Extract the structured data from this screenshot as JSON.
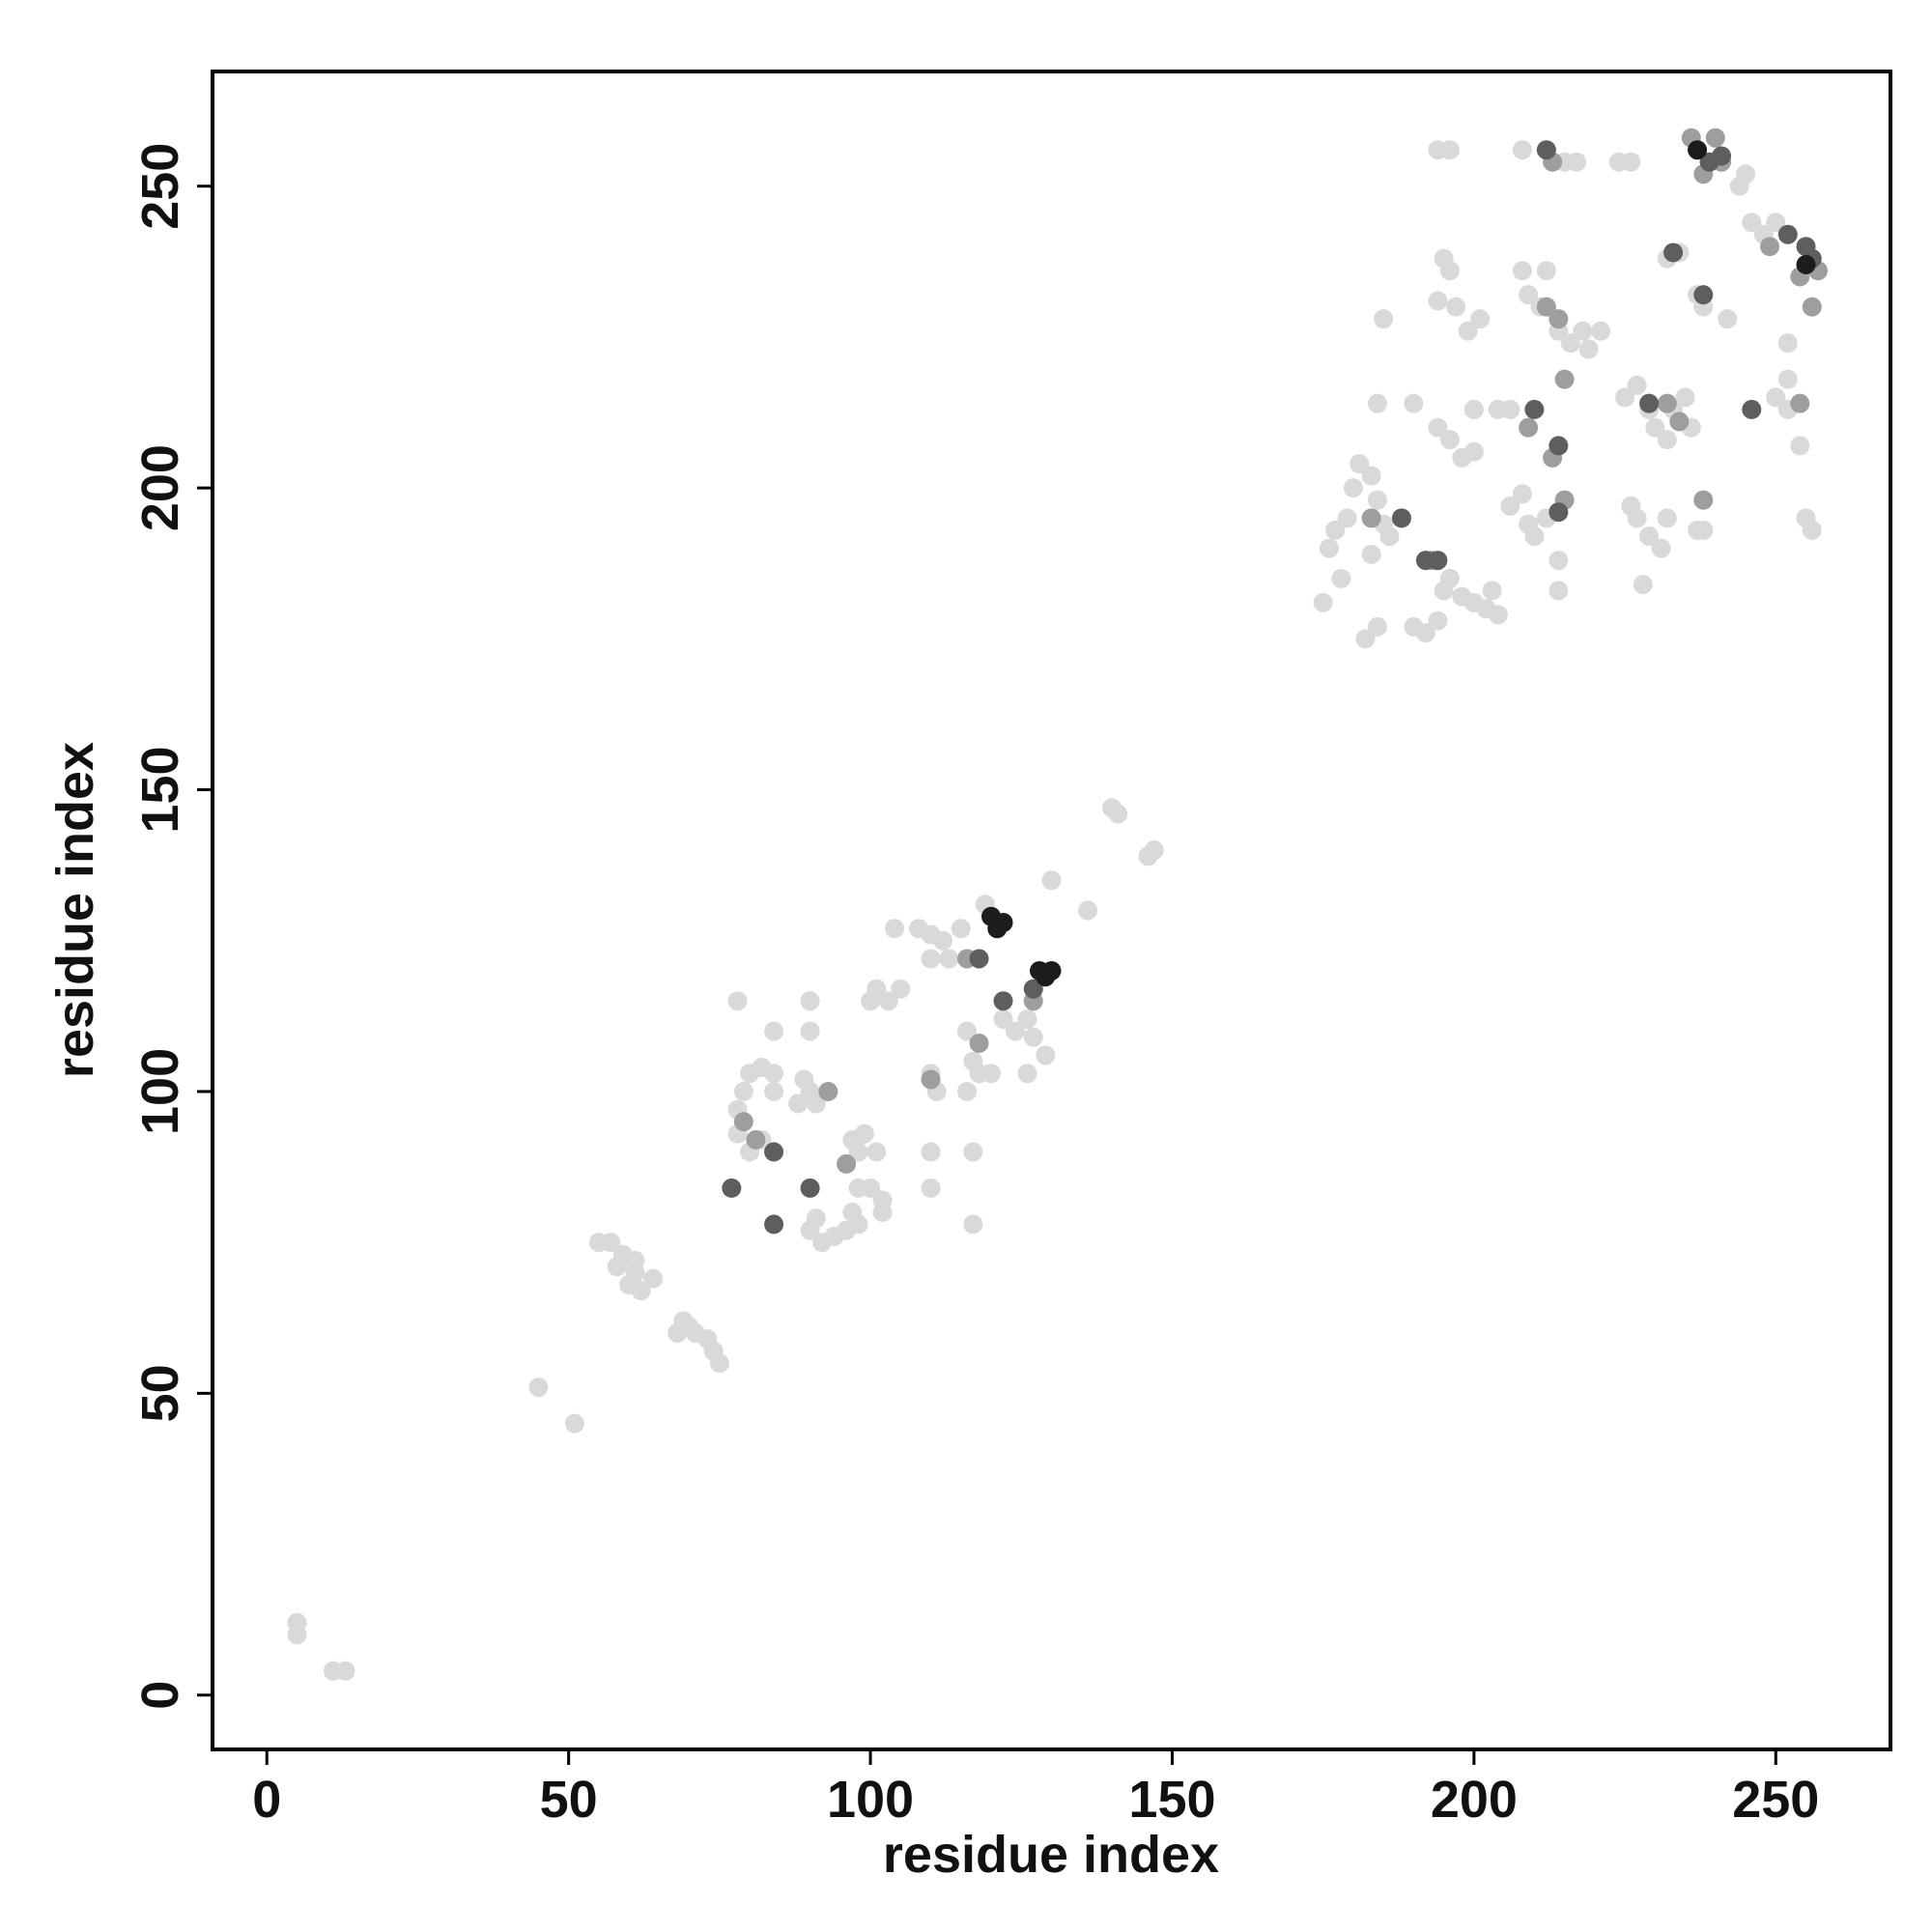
{
  "chart_data": {
    "type": "scatter",
    "x_label": "residue index",
    "y_label": "residue index",
    "xlim": [
      -9,
      269
    ],
    "ylim": [
      -9,
      269
    ],
    "xticks": [
      0,
      50,
      100,
      150,
      200,
      250
    ],
    "yticks": [
      0,
      50,
      100,
      150,
      200,
      250
    ],
    "series": [
      {
        "color": "#d9d9d9",
        "x": [
          5,
          5,
          11,
          13,
          45,
          51,
          55,
          57,
          59,
          61,
          61,
          60,
          62,
          64,
          58,
          69,
          68,
          71,
          73,
          74,
          75,
          70,
          78,
          78,
          79,
          80,
          82,
          84,
          80,
          82,
          84,
          78,
          84,
          88,
          89,
          90,
          91,
          91,
          90,
          92,
          94,
          96,
          98,
          97,
          98,
          100,
          102,
          102,
          98,
          97,
          99,
          101,
          90,
          90,
          100,
          101,
          103,
          105,
          104,
          108,
          110,
          112,
          115,
          113,
          110,
          110,
          111,
          110,
          110,
          116,
          117,
          118,
          116,
          120,
          117,
          117,
          119,
          122,
          124,
          126,
          127,
          126,
          129,
          130,
          136,
          140,
          141,
          147,
          146,
          175,
          176,
          177,
          179,
          178,
          180,
          181,
          183,
          184,
          185,
          186,
          182,
          184,
          183,
          185,
          184,
          190,
          190,
          192,
          194,
          195,
          196,
          198,
          200,
          202,
          204,
          203,
          194,
          196,
          198,
          200,
          200,
          195,
          196,
          197,
          199,
          201,
          194,
          194,
          196,
          204,
          206,
          206,
          208,
          209,
          210,
          212,
          214,
          214,
          214,
          208,
          209,
          211,
          212,
          214,
          216,
          218,
          219,
          221,
          208,
          212,
          215,
          217,
          224,
          226,
          225,
          227,
          229,
          230,
          232,
          233,
          235,
          236,
          226,
          227,
          229,
          231,
          232,
          237,
          238,
          228,
          232,
          234,
          237,
          238,
          242,
          245,
          244,
          246,
          248,
          250,
          250,
          252,
          252,
          252,
          254,
          255,
          256
        ],
        "y": [
          12,
          10,
          4,
          4,
          51,
          45,
          75,
          75,
          73,
          72,
          70,
          68,
          67,
          69,
          71,
          62,
          60,
          60,
          59,
          57,
          55,
          61,
          97,
          93,
          100,
          103,
          104,
          103,
          90,
          92,
          100,
          115,
          110,
          98,
          102,
          100,
          98,
          79,
          77,
          75,
          76,
          77,
          78,
          80,
          84,
          84,
          82,
          80,
          90,
          92,
          93,
          90,
          110,
          115,
          115,
          117,
          115,
          117,
          127,
          127,
          126,
          125,
          127,
          122,
          122,
          103,
          100,
          90,
          84,
          110,
          105,
          103,
          100,
          103,
          90,
          78,
          131,
          112,
          110,
          112,
          109,
          103,
          106,
          135,
          130,
          147,
          146,
          140,
          139,
          181,
          190,
          193,
          195,
          185,
          200,
          204,
          202,
          198,
          194,
          192,
          175,
          177,
          189,
          228,
          214,
          214,
          177,
          176,
          178,
          183,
          185,
          182,
          181,
          180,
          179,
          183,
          210,
          208,
          205,
          206,
          213,
          238,
          236,
          230,
          226,
          228,
          231,
          256,
          256,
          213,
          213,
          197,
          199,
          194,
          192,
          195,
          196,
          188,
          183,
          236,
          232,
          230,
          236,
          226,
          224,
          226,
          223,
          226,
          256,
          256,
          254,
          254,
          254,
          254,
          215,
          217,
          213,
          210,
          208,
          213,
          215,
          210,
          197,
          195,
          192,
          190,
          195,
          193,
          193,
          184,
          238,
          239,
          232,
          230,
          228,
          252,
          250,
          244,
          242,
          244,
          215,
          213,
          218,
          224,
          207,
          195,
          193
        ]
      },
      {
        "color": "#9e9e9e",
        "x": [
          79,
          81,
          93,
          96,
          110,
          116,
          118,
          127,
          183,
          193,
          212,
          214,
          232,
          234,
          238,
          236,
          240,
          238,
          241,
          249,
          254,
          256,
          257,
          254,
          215,
          209,
          213,
          215,
          213
        ],
        "y": [
          95,
          92,
          100,
          88,
          102,
          122,
          108,
          115,
          195,
          188,
          230,
          228,
          214,
          211,
          198,
          258,
          258,
          252,
          254,
          240,
          235,
          230,
          236,
          214,
          218,
          210,
          205,
          198,
          254
        ]
      },
      {
        "color": "#5e5e5e",
        "x": [
          77,
          84,
          84,
          90,
          118,
          122,
          127,
          188,
          192,
          194,
          210,
          214,
          214,
          233,
          238,
          239,
          241,
          252,
          255,
          256,
          212,
          229,
          246
        ],
        "y": [
          84,
          90,
          78,
          84,
          122,
          115,
          117,
          195,
          188,
          188,
          213,
          207,
          196,
          239,
          232,
          254,
          255,
          242,
          240,
          238,
          256,
          214,
          213
        ]
      },
      {
        "color": "#1c1c1c",
        "x": [
          120,
          121,
          122,
          128,
          130,
          129,
          237,
          255
        ],
        "y": [
          129,
          127,
          128,
          120,
          120,
          119,
          256,
          237
        ]
      }
    ]
  }
}
